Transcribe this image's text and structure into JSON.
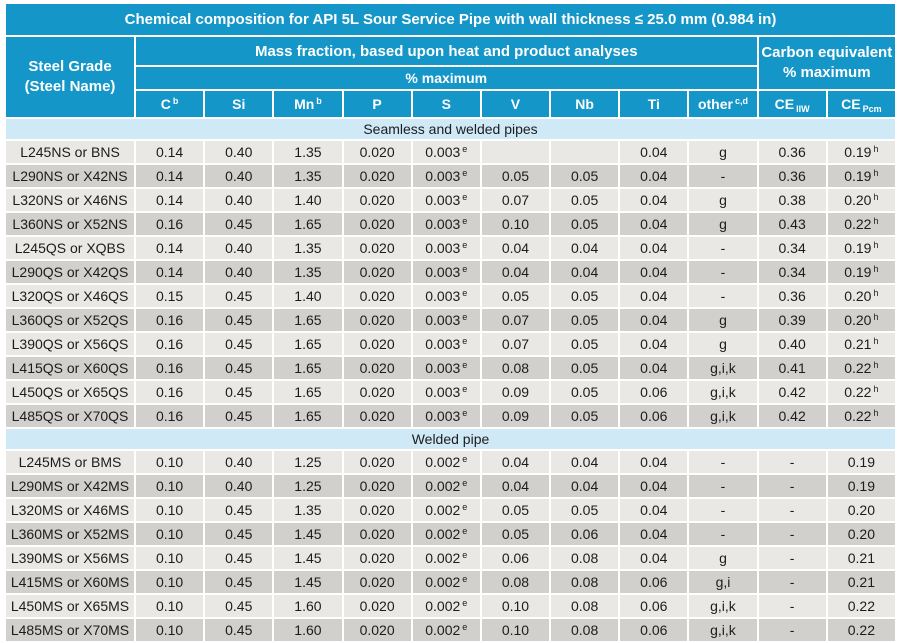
{
  "colors": {
    "header_blue": "#1496C8",
    "section_band": "#CFE9F7",
    "row_light": "#E9E8E5",
    "row_dark": "#D2D0CC",
    "grid_white": "#FFFFFF",
    "header_text": "#FFFFFF",
    "body_text": "#1C1C1C"
  },
  "title": "Chemical composition for API 5L Sour Service Pipe with wall thickness ≤ 25.0 mm (0.984 in)",
  "header": {
    "steel_grade_line1": "Steel Grade",
    "steel_grade_line2": "(Steel Name)",
    "mass_fraction": "Mass fraction, based upon heat and product analyses",
    "percent_max": "% maximum",
    "carbon_equivalent_line1": "Carbon equivalent",
    "carbon_equivalent_line2": "% maximum",
    "columns": [
      "C^b",
      "Si",
      "Mn^b",
      "P",
      "S",
      "V",
      "Nb",
      "Ti",
      "other^c,d",
      "CE~IIW",
      "CE~Pcm"
    ]
  },
  "sections": [
    {
      "label": "Seamless and welded pipes",
      "rows": [
        {
          "grade": "L245NS or BNS",
          "values": [
            "0.14",
            "0.40",
            "1.35",
            "0.020",
            "0.003^e",
            "",
            "",
            "0.04",
            "g",
            "0.36",
            "0.19^h"
          ]
        },
        {
          "grade": "L290NS or X42NS",
          "values": [
            "0.14",
            "0.40",
            "1.35",
            "0.020",
            "0.003^e",
            "0.05",
            "0.05",
            "0.04",
            "-",
            "0.36",
            "0.19^h"
          ]
        },
        {
          "grade": "L320NS or X46NS",
          "values": [
            "0.14",
            "0.40",
            "1.40",
            "0.020",
            "0.003^e",
            "0.07",
            "0.05",
            "0.04",
            "g",
            "0.38",
            "0.20^h"
          ]
        },
        {
          "grade": "L360NS or X52NS",
          "values": [
            "0.16",
            "0.45",
            "1.65",
            "0.020",
            "0.003^e",
            "0.10",
            "0.05",
            "0.04",
            "g",
            "0.43",
            "0.22^h"
          ]
        },
        {
          "grade": "L245QS or XQBS",
          "values": [
            "0.14",
            "0.40",
            "1.35",
            "0.020",
            "0.003^e",
            "0.04",
            "0.04",
            "0.04",
            "-",
            "0.34",
            "0.19^h"
          ]
        },
        {
          "grade": "L290QS or X42QS",
          "values": [
            "0.14",
            "0.40",
            "1.35",
            "0.020",
            "0.003^e",
            "0.04",
            "0.04",
            "0.04",
            "-",
            "0.34",
            "0.19^h"
          ]
        },
        {
          "grade": "L320QS or X46QS",
          "values": [
            "0.15",
            "0.45",
            "1.40",
            "0.020",
            "0.003^e",
            "0.05",
            "0.05",
            "0.04",
            "-",
            "0.36",
            "0.20^h"
          ]
        },
        {
          "grade": "L360QS or X52QS",
          "values": [
            "0.16",
            "0.45",
            "1.65",
            "0.020",
            "0.003^e",
            "0.07",
            "0.05",
            "0.04",
            "g",
            "0.39",
            "0.20^h"
          ]
        },
        {
          "grade": "L390QS or X56QS",
          "values": [
            "0.16",
            "0.45",
            "1.65",
            "0.020",
            "0.003^e",
            "0.07",
            "0.05",
            "0.04",
            "g",
            "0.40",
            "0.21^h"
          ]
        },
        {
          "grade": "L415QS or X60QS",
          "values": [
            "0.16",
            "0.45",
            "1.65",
            "0.020",
            "0.003^e",
            "0.08",
            "0.05",
            "0.04",
            "g,i,k",
            "0.41",
            "0.22^h"
          ]
        },
        {
          "grade": "L450QS or X65QS",
          "values": [
            "0.16",
            "0.45",
            "1.65",
            "0.020",
            "0.003^e",
            "0.09",
            "0.05",
            "0.06",
            "g,i,k",
            "0.42",
            "0.22^h"
          ]
        },
        {
          "grade": "L485QS or X70QS",
          "values": [
            "0.16",
            "0.45",
            "1.65",
            "0.020",
            "0.003^e",
            "0.09",
            "0.05",
            "0.06",
            "g,i,k",
            "0.42",
            "0.22^h"
          ]
        }
      ]
    },
    {
      "label": "Welded pipe",
      "rows": [
        {
          "grade": "L245MS or BMS",
          "values": [
            "0.10",
            "0.40",
            "1.25",
            "0.020",
            "0.002^e",
            "0.04",
            "0.04",
            "0.04",
            "-",
            "-",
            "0.19"
          ]
        },
        {
          "grade": "L290MS or X42MS",
          "values": [
            "0.10",
            "0.40",
            "1.25",
            "0.020",
            "0.002^e",
            "0.04",
            "0.04",
            "0.04",
            "-",
            "-",
            "0.19"
          ]
        },
        {
          "grade": "L320MS or X46MS",
          "values": [
            "0.10",
            "0.45",
            "1.35",
            "0.020",
            "0.002^e",
            "0.05",
            "0.05",
            "0.04",
            "-",
            "-",
            "0.20"
          ]
        },
        {
          "grade": "L360MS or X52MS",
          "values": [
            "0.10",
            "0.45",
            "1.45",
            "0.020",
            "0.002^e",
            "0.05",
            "0.06",
            "0.04",
            "-",
            "-",
            "0.20"
          ]
        },
        {
          "grade": "L390MS or X56MS",
          "values": [
            "0.10",
            "0.45",
            "1.45",
            "0.020",
            "0.002^e",
            "0.06",
            "0.08",
            "0.04",
            "g",
            "-",
            "0.21"
          ]
        },
        {
          "grade": "L415MS or X60MS",
          "values": [
            "0.10",
            "0.45",
            "1.45",
            "0.020",
            "0.002^e",
            "0.08",
            "0.08",
            "0.06",
            "g,i",
            "-",
            "0.21"
          ]
        },
        {
          "grade": "L450MS or X65MS",
          "values": [
            "0.10",
            "0.45",
            "1.60",
            "0.020",
            "0.002^e",
            "0.10",
            "0.08",
            "0.06",
            "g,i,k",
            "-",
            "0.22"
          ]
        },
        {
          "grade": "L485MS or X70MS",
          "values": [
            "0.10",
            "0.45",
            "1.60",
            "0.020",
            "0.002^e",
            "0.10",
            "0.08",
            "0.06",
            "g,i,k",
            "-",
            "0.22"
          ]
        }
      ]
    }
  ]
}
